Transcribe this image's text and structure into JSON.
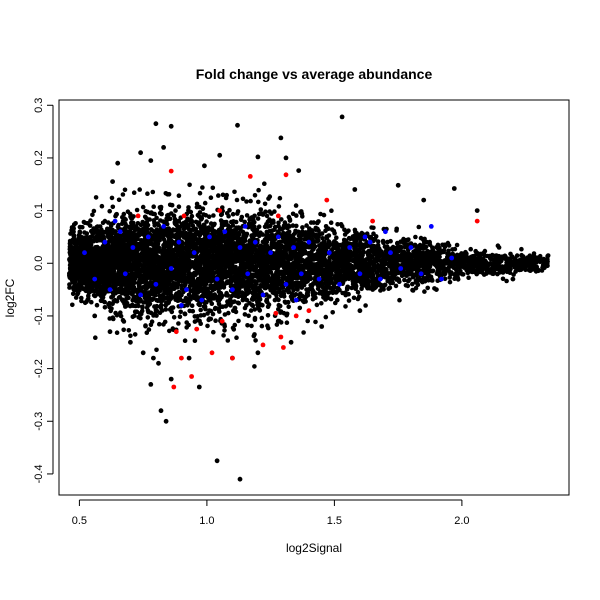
{
  "chart_data": {
    "type": "scatter",
    "title": "Fold change vs average abundance",
    "xlabel": "log2Signal",
    "ylabel": "log2FC",
    "xlim": [
      0.42,
      2.42
    ],
    "ylim": [
      -0.44,
      0.31
    ],
    "x_ticks": [
      0.5,
      1.0,
      1.5,
      2.0
    ],
    "x_tick_labels": [
      "0.5",
      "1.0",
      "1.5",
      "2.0"
    ],
    "y_ticks": [
      -0.4,
      -0.3,
      -0.2,
      -0.1,
      0.0,
      0.1,
      0.2,
      0.3
    ],
    "y_tick_labels": [
      "-0.4",
      "-0.3",
      "-0.2",
      "-0.1",
      "0.0",
      "0.1",
      "0.2",
      "0.3"
    ],
    "grid": false,
    "legend": "none",
    "colors": {
      "base": "#000000",
      "highlight_blue": "#0000ff",
      "highlight_red": "#ff0000"
    },
    "bulk_envelope": {
      "x_range": [
        0.46,
        2.34
      ],
      "spread": [
        {
          "x": 0.5,
          "sd": 0.03
        },
        {
          "x": 0.8,
          "sd": 0.05
        },
        {
          "x": 1.2,
          "sd": 0.05
        },
        {
          "x": 1.6,
          "sd": 0.03
        },
        {
          "x": 2.0,
          "sd": 0.014
        },
        {
          "x": 2.3,
          "sd": 0.007
        }
      ]
    },
    "series": [
      {
        "points": [
          [
            0.8,
            0.265
          ],
          [
            0.86,
            0.26
          ],
          [
            1.12,
            0.262
          ],
          [
            1.29,
            0.238
          ],
          [
            1.53,
            0.278
          ],
          [
            0.74,
            0.21
          ],
          [
            0.83,
            0.22
          ],
          [
            1.05,
            0.205
          ],
          [
            1.2,
            0.202
          ],
          [
            1.31,
            0.2
          ],
          [
            0.65,
            0.19
          ],
          [
            0.78,
            0.195
          ],
          [
            0.99,
            0.185
          ],
          [
            1.36,
            0.176
          ],
          [
            1.75,
            0.148
          ],
          [
            1.97,
            0.142
          ],
          [
            0.63,
            0.155
          ],
          [
            1.58,
            0.14
          ],
          [
            1.85,
            0.12
          ],
          [
            2.06,
            0.1
          ],
          [
            0.56,
            -0.1
          ],
          [
            0.62,
            -0.13
          ],
          [
            0.7,
            -0.15
          ],
          [
            0.75,
            -0.17
          ],
          [
            0.79,
            -0.18
          ],
          [
            0.81,
            -0.19
          ],
          [
            0.78,
            -0.23
          ],
          [
            0.82,
            -0.28
          ],
          [
            0.84,
            -0.3
          ],
          [
            0.86,
            -0.22
          ],
          [
            0.93,
            -0.18
          ],
          [
            0.97,
            -0.235
          ],
          [
            1.04,
            -0.375
          ],
          [
            1.13,
            -0.41
          ],
          [
            1.1,
            -0.18
          ],
          [
            1.2,
            -0.17
          ],
          [
            1.33,
            -0.15
          ],
          [
            1.45,
            -0.12
          ],
          [
            1.6,
            -0.09
          ],
          [
            1.9,
            -0.05
          ],
          [
            2.2,
            -0.03
          ],
          [
            2.32,
            0.005
          ],
          [
            2.28,
            -0.01
          ],
          [
            2.25,
            0.008
          ]
        ]
      },
      {
        "points": [
          [
            0.52,
            0.02
          ],
          [
            0.56,
            -0.03
          ],
          [
            0.6,
            0.04
          ],
          [
            0.62,
            -0.05
          ],
          [
            0.66,
            0.06
          ],
          [
            0.68,
            -0.02
          ],
          [
            0.71,
            0.03
          ],
          [
            0.74,
            -0.06
          ],
          [
            0.77,
            0.05
          ],
          [
            0.8,
            -0.04
          ],
          [
            0.83,
            0.07
          ],
          [
            0.86,
            -0.01
          ],
          [
            0.89,
            0.04
          ],
          [
            0.92,
            -0.05
          ],
          [
            0.95,
            0.02
          ],
          [
            0.98,
            -0.07
          ],
          [
            1.01,
            0.05
          ],
          [
            1.04,
            -0.03
          ],
          [
            1.07,
            0.06
          ],
          [
            1.1,
            -0.05
          ],
          [
            1.13,
            0.03
          ],
          [
            1.16,
            -0.02
          ],
          [
            1.19,
            0.04
          ],
          [
            1.22,
            -0.06
          ],
          [
            1.25,
            0.02
          ],
          [
            1.28,
            0.05
          ],
          [
            1.31,
            -0.04
          ],
          [
            1.34,
            0.03
          ],
          [
            1.37,
            -0.02
          ],
          [
            1.4,
            0.04
          ],
          [
            1.44,
            -0.03
          ],
          [
            1.48,
            0.02
          ],
          [
            1.52,
            -0.04
          ],
          [
            1.56,
            0.03
          ],
          [
            1.6,
            -0.02
          ],
          [
            1.64,
            0.04
          ],
          [
            1.68,
            -0.03
          ],
          [
            1.72,
            0.02
          ],
          [
            1.76,
            -0.01
          ],
          [
            1.8,
            0.03
          ],
          [
            1.84,
            -0.02
          ],
          [
            1.88,
            0.07
          ],
          [
            1.92,
            -0.03
          ],
          [
            1.96,
            0.01
          ],
          [
            1.7,
            0.06
          ],
          [
            0.64,
            0.08
          ],
          [
            0.9,
            -0.08
          ],
          [
            1.15,
            0.07
          ],
          [
            1.35,
            -0.07
          ],
          [
            1.62,
            0.05
          ]
        ]
      },
      {
        "points": [
          [
            0.86,
            0.175
          ],
          [
            1.17,
            0.165
          ],
          [
            1.31,
            0.168
          ],
          [
            1.47,
            0.12
          ],
          [
            2.06,
            0.08
          ],
          [
            1.65,
            0.08
          ],
          [
            0.73,
            0.09
          ],
          [
            0.91,
            0.09
          ],
          [
            1.28,
            0.09
          ],
          [
            1.05,
            0.1
          ],
          [
            0.88,
            -0.13
          ],
          [
            0.96,
            -0.125
          ],
          [
            1.02,
            -0.17
          ],
          [
            1.1,
            -0.18
          ],
          [
            0.94,
            -0.215
          ],
          [
            0.9,
            -0.18
          ],
          [
            0.87,
            -0.235
          ],
          [
            1.22,
            -0.155
          ],
          [
            1.3,
            -0.16
          ],
          [
            1.27,
            -0.095
          ],
          [
            1.35,
            -0.1
          ],
          [
            1.4,
            -0.09
          ],
          [
            1.29,
            -0.14
          ],
          [
            1.06,
            -0.11
          ]
        ]
      }
    ]
  }
}
